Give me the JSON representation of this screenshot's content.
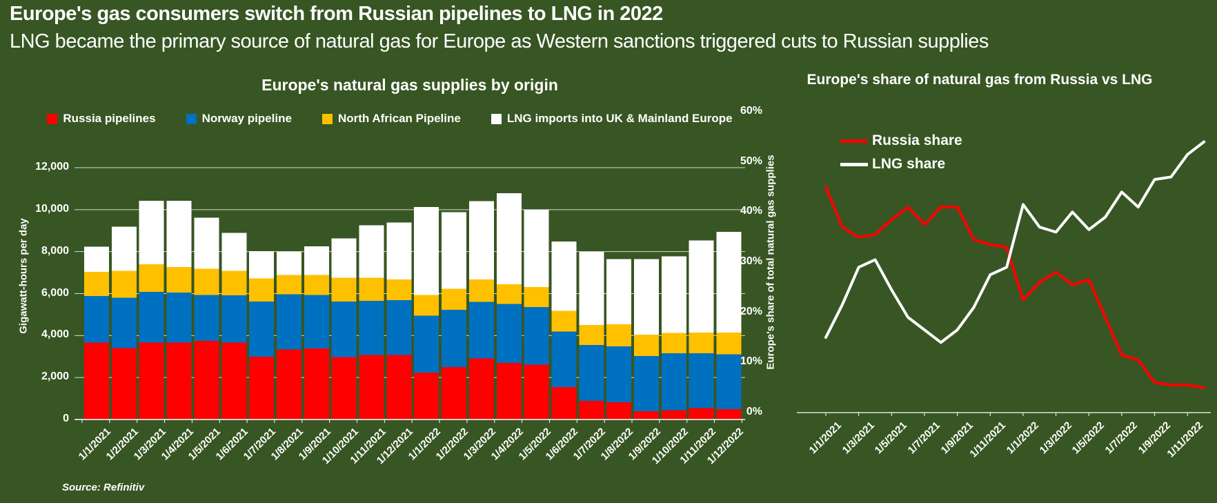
{
  "header": {
    "title": "Europe's gas consumers switch from Russian pipelines to LNG in 2022",
    "subtitle": "LNG became the primary source of natural gas for Europe as Western sanctions triggered cuts to Russian supplies"
  },
  "source": "Source: Refinitiv",
  "theme": {
    "background": "#375623",
    "text": "#ffffff",
    "gridline": "rgba(255,255,255,0.8)",
    "axis_line": "#ffffff"
  },
  "chart_data": [
    {
      "type": "bar",
      "stacked": true,
      "title": "Europe's natural gas supplies by origin",
      "ylabel": "Gigawatt-hours per day",
      "xlabel": "",
      "ylim": [
        0,
        12000
      ],
      "ytick_step": 2000,
      "grid": true,
      "legend_position": "top",
      "categories": [
        "1/1/2021",
        "1/2/2021",
        "1/3/2021",
        "1/4/2021",
        "1/5/2021",
        "1/6/2021",
        "1/7/2021",
        "1/8/2021",
        "1/9/2021",
        "1/10/2021",
        "1/11/2021",
        "1/12/2021",
        "1/1/2022",
        "1/2/2022",
        "1/3/2022",
        "1/4/2022",
        "1/5/2022",
        "1/6/2022",
        "1/7/2022",
        "1/8/2022",
        "1/9/2022",
        "1/10/2022",
        "1/11/2022",
        "1/12/2022"
      ],
      "series": [
        {
          "name": "Russia pipelines",
          "color": "#FF0000",
          "values": [
            3660,
            3410,
            3660,
            3660,
            3740,
            3660,
            3000,
            3330,
            3380,
            2970,
            3080,
            3080,
            2230,
            2500,
            2910,
            2690,
            2610,
            1550,
            890,
            820,
            400,
            450,
            550,
            500
          ]
        },
        {
          "name": "Norway pipeline",
          "color": "#0070C0",
          "values": [
            2220,
            2400,
            2430,
            2390,
            2200,
            2260,
            2630,
            2630,
            2560,
            2660,
            2580,
            2610,
            2720,
            2720,
            2700,
            2810,
            2750,
            2650,
            2660,
            2670,
            2620,
            2700,
            2600,
            2600
          ]
        },
        {
          "name": "North African Pipeline",
          "color": "#FFC000",
          "values": [
            1150,
            1280,
            1300,
            1210,
            1250,
            1170,
            1100,
            930,
            950,
            1130,
            1090,
            980,
            990,
            1010,
            1060,
            950,
            960,
            970,
            950,
            1040,
            1020,
            980,
            1000,
            1050
          ]
        },
        {
          "name": "LNG imports into UK & Mainland Europe",
          "color": "#FFFFFF",
          "values": [
            1200,
            2100,
            3040,
            3170,
            2430,
            1800,
            1290,
            1120,
            1370,
            1870,
            2500,
            2710,
            4190,
            3650,
            3740,
            4340,
            3680,
            3310,
            3490,
            3110,
            3600,
            3650,
            4380,
            4800
          ]
        }
      ]
    },
    {
      "type": "line",
      "title": "Europe's share of natural gas from Russia vs LNG",
      "ylabel": "Europe's share of total natural gas supplies",
      "xlabel": "",
      "ylim": [
        0,
        60
      ],
      "ytick_step": 10,
      "ytick_suffix": "%",
      "grid": false,
      "xtick_every": 2,
      "categories": [
        "1/1/2021",
        "1/2/2021",
        "1/3/2021",
        "1/4/2021",
        "1/5/2021",
        "1/6/2021",
        "1/7/2021",
        "1/8/2021",
        "1/9/2021",
        "1/10/2021",
        "1/11/2021",
        "1/12/2021",
        "1/1/2022",
        "1/2/2022",
        "1/3/2022",
        "1/4/2022",
        "1/5/2022",
        "1/6/2022",
        "1/7/2022",
        "1/8/2022",
        "1/9/2022",
        "1/10/2022",
        "1/11/2022",
        "1/12/2022"
      ],
      "series": [
        {
          "name": "Russia share",
          "color": "#FF0000",
          "values": [
            45,
            37,
            35,
            35.5,
            38.5,
            41,
            37.5,
            41,
            41,
            34.5,
            33.5,
            33,
            22.5,
            26,
            28,
            25.5,
            26.5,
            19,
            11.5,
            10.5,
            6,
            5.5,
            5.5,
            5
          ]
        },
        {
          "name": "LNG share",
          "color": "#FFFFFF",
          "values": [
            15,
            21.5,
            29,
            30.5,
            24.5,
            19,
            16.5,
            14,
            16.5,
            21,
            27.5,
            29,
            41.5,
            37,
            36,
            40,
            36.5,
            39,
            44,
            41,
            46.5,
            47,
            51.5,
            54
          ]
        }
      ]
    }
  ]
}
